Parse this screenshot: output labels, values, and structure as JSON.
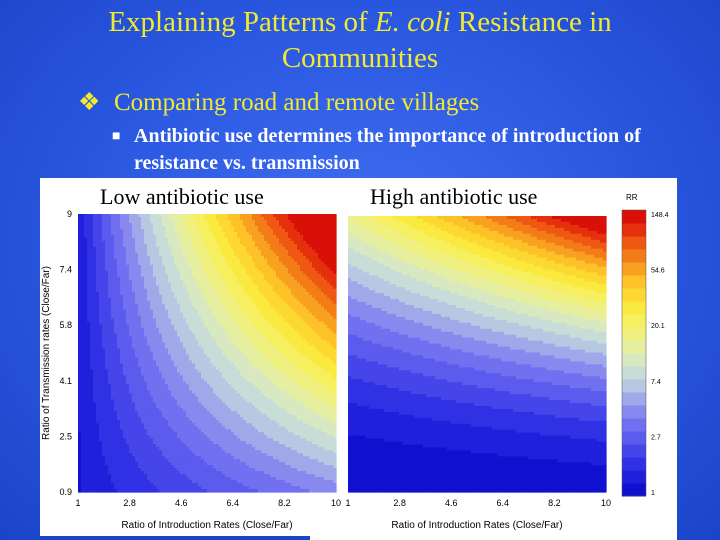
{
  "slide": {
    "title_part1": "Explaining Patterns of ",
    "title_italic": "E. coli",
    "title_part2": " Resistance in",
    "title_line2": "Communities",
    "bullet1_mark": "❖",
    "bullet1": "Comparing road and remote villages",
    "bullet2_mark": "■",
    "bullet2": "Antibiotic use determines the importance of introduction of resistance vs. transmission"
  },
  "chart_data": [
    {
      "type": "heatmap",
      "title": "Low antibiotic use",
      "xlabel": "Ratio of Introduction Rates (Close/Far)",
      "ylabel": "Ratio of Transmission rates (Close/Far)",
      "x_ticks": [
        "1",
        "2.8",
        "4.6",
        "6.4",
        "8.2",
        "10"
      ],
      "y_ticks": [
        "0.9",
        "2.5",
        "4.1",
        "5.8",
        "7.4",
        "9"
      ],
      "xlim": [
        1,
        10
      ],
      "ylim": [
        0.9,
        9
      ],
      "pattern": "RR increases mainly with introduction ratio (vertical-ish contour bands)"
    },
    {
      "type": "heatmap",
      "title": "High antibiotic use",
      "xlabel": "Ratio of Introduction Rates (Close/Far)",
      "x_ticks": [
        "1",
        "2.8",
        "4.6",
        "6.4",
        "8.2",
        "10"
      ],
      "xlim": [
        1,
        10
      ],
      "pattern": "RR increases mainly with transmission ratio (horizontal-ish contour bands)"
    }
  ],
  "colorbar": {
    "label": "RR",
    "ticks": [
      "148.4",
      "54.6",
      "20.1",
      "7.4",
      "2.7",
      "1"
    ],
    "colors": [
      "#1010d0",
      "#2020dc",
      "#3030e4",
      "#4545ea",
      "#5b5bee",
      "#7070f0",
      "#8888ee",
      "#a0a8ea",
      "#b6c8e2",
      "#c8dcd8",
      "#d8e8c0",
      "#e6eea0",
      "#f0f080",
      "#f6f060",
      "#faea40",
      "#fcd830",
      "#fcc228",
      "#f8a020",
      "#f47c18",
      "#ee5812",
      "#e4300c",
      "#d81008"
    ]
  }
}
